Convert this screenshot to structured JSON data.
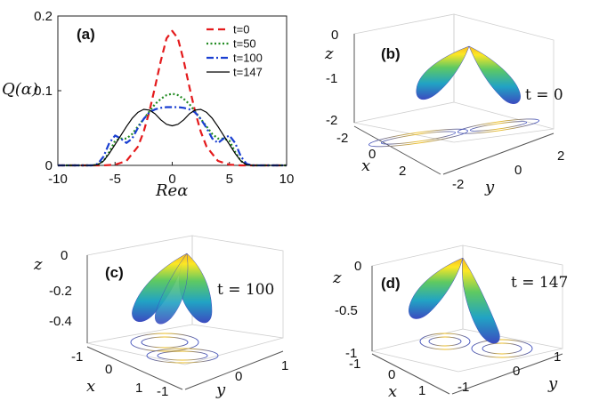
{
  "chart_data": [
    {
      "panel": "(a)",
      "type": "line",
      "xlabel": "Reα",
      "ylabel": "Q(α)",
      "xlim": [
        -10,
        10
      ],
      "ylim": [
        0,
        0.2
      ],
      "xticks": [
        "-10",
        "-5",
        "0",
        "5",
        "10"
      ],
      "yticks": [
        "0",
        "0.1",
        "0.2"
      ],
      "legend_position": "top-right",
      "series": [
        {
          "name": "t=0",
          "color": "#e41a1c",
          "style": "dashed",
          "x": [
            -10,
            -8,
            -7,
            -6,
            -5,
            -4,
            -3,
            -2.5,
            -2,
            -1.5,
            -1,
            -0.5,
            0,
            0.5,
            1,
            1.5,
            2,
            2.5,
            3,
            4,
            5,
            6,
            7,
            8,
            10
          ],
          "y": [
            0,
            0,
            0,
            0,
            0.001,
            0.006,
            0.025,
            0.045,
            0.072,
            0.105,
            0.14,
            0.17,
            0.18,
            0.17,
            0.14,
            0.105,
            0.072,
            0.045,
            0.025,
            0.006,
            0.001,
            0,
            0,
            0,
            0
          ]
        },
        {
          "name": "t=50",
          "color": "#228b22",
          "style": "dotted",
          "x": [
            -10,
            -7,
            -6.5,
            -6,
            -5.5,
            -5,
            -4.5,
            -4,
            -3.5,
            -3,
            -2.5,
            -2,
            -1.5,
            -1,
            -0.5,
            0,
            0.5,
            1,
            1.5,
            2,
            2.5,
            3,
            3.5,
            4,
            4.5,
            5,
            5.5,
            6,
            6.5,
            7,
            10
          ],
          "y": [
            0,
            0,
            0.001,
            0.006,
            0.018,
            0.033,
            0.036,
            0.036,
            0.042,
            0.052,
            0.062,
            0.072,
            0.082,
            0.089,
            0.094,
            0.096,
            0.094,
            0.089,
            0.082,
            0.072,
            0.062,
            0.052,
            0.042,
            0.036,
            0.036,
            0.033,
            0.018,
            0.006,
            0.001,
            0,
            0
          ]
        },
        {
          "name": "t=100",
          "color": "#1a3fd1",
          "style": "dashdot",
          "x": [
            -10,
            -7,
            -6.5,
            -6,
            -5.5,
            -5,
            -4.5,
            -4,
            -3.5,
            -3,
            -2.5,
            -2,
            -1.5,
            -1,
            -0.5,
            0,
            0.5,
            1,
            1.5,
            2,
            2.5,
            3,
            3.5,
            4,
            4.5,
            5,
            5.5,
            6,
            6.5,
            7,
            10
          ],
          "y": [
            0,
            0,
            0.002,
            0.012,
            0.03,
            0.04,
            0.036,
            0.03,
            0.036,
            0.05,
            0.062,
            0.071,
            0.075,
            0.077,
            0.078,
            0.078,
            0.078,
            0.077,
            0.075,
            0.071,
            0.062,
            0.05,
            0.036,
            0.03,
            0.036,
            0.04,
            0.03,
            0.012,
            0.002,
            0,
            0
          ]
        },
        {
          "name": "t=147",
          "color": "#000000",
          "style": "solid",
          "x": [
            -10,
            -7,
            -6.5,
            -6,
            -5.5,
            -5,
            -4.5,
            -4,
            -3.5,
            -3,
            -2.5,
            -2,
            -1.5,
            -1,
            -0.5,
            0,
            0.5,
            1,
            1.5,
            2,
            2.5,
            3,
            3.5,
            4,
            4.5,
            5,
            5.5,
            6,
            6.5,
            7,
            10
          ],
          "y": [
            0,
            0,
            0.001,
            0.006,
            0.016,
            0.028,
            0.04,
            0.052,
            0.063,
            0.071,
            0.075,
            0.074,
            0.069,
            0.061,
            0.055,
            0.053,
            0.055,
            0.061,
            0.069,
            0.074,
            0.075,
            0.071,
            0.063,
            0.052,
            0.04,
            0.028,
            0.016,
            0.006,
            0.001,
            0,
            0
          ]
        }
      ]
    },
    {
      "panel": "(b)",
      "type": "surface3d",
      "annotation": "t = 0",
      "xlabel": "x",
      "ylabel": "y",
      "zlabel": "z",
      "xticks": [
        "-2",
        "0",
        "2"
      ],
      "yticks": [
        "-2",
        "0",
        "2"
      ],
      "zticks": [
        "0",
        "-1",
        "-2"
      ],
      "colormap": [
        "#3b4cc0",
        "#21a3c4",
        "#5ec962",
        "#fde725",
        "#f7b91f"
      ]
    },
    {
      "panel": "(c)",
      "type": "surface3d",
      "annotation": "t = 100",
      "xlabel": "x",
      "ylabel": "y",
      "zlabel": "z",
      "xticks": [
        "-1",
        "0",
        "1"
      ],
      "yticks": [
        "-1",
        "0",
        "1"
      ],
      "zticks": [
        "0",
        "-0.2",
        "-0.4"
      ],
      "colormap": [
        "#3b4cc0",
        "#21a3c4",
        "#5ec962",
        "#fde725",
        "#f7b91f"
      ]
    },
    {
      "panel": "(d)",
      "type": "surface3d",
      "annotation": "t = 147",
      "xlabel": "x",
      "ylabel": "y",
      "zlabel": "z",
      "xticks": [
        "-1",
        "0",
        "1"
      ],
      "yticks": [
        "-1",
        "0",
        "1"
      ],
      "zticks": [
        "0",
        "-0.5",
        "-1"
      ],
      "colormap": [
        "#3b4cc0",
        "#21a3c4",
        "#5ec962",
        "#fde725",
        "#f7b91f"
      ]
    }
  ]
}
